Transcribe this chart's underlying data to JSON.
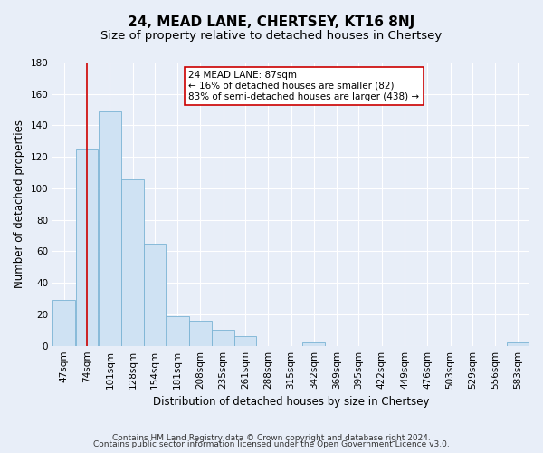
{
  "title": "24, MEAD LANE, CHERTSEY, KT16 8NJ",
  "subtitle": "Size of property relative to detached houses in Chertsey",
  "xlabel": "Distribution of detached houses by size in Chertsey",
  "ylabel": "Number of detached properties",
  "bar_edges": [
    47,
    74,
    101,
    128,
    154,
    181,
    208,
    235,
    261,
    288,
    315,
    342,
    369,
    395,
    422,
    449,
    476,
    503,
    529,
    556,
    583
  ],
  "bar_heights": [
    29,
    125,
    149,
    106,
    65,
    19,
    16,
    10,
    6,
    0,
    0,
    2,
    0,
    0,
    0,
    0,
    0,
    0,
    0,
    0,
    2
  ],
  "bar_color": "#cfe2f3",
  "bar_edgecolor": "#7ab3d4",
  "vline_x": 87,
  "vline_color": "#cc0000",
  "annotation_text": "24 MEAD LANE: 87sqm\n← 16% of detached houses are smaller (82)\n83% of semi-detached houses are larger (438) →",
  "annotation_box_edgecolor": "#cc0000",
  "annotation_box_facecolor": "#ffffff",
  "ylim": [
    0,
    180
  ],
  "yticks": [
    0,
    20,
    40,
    60,
    80,
    100,
    120,
    140,
    160,
    180
  ],
  "footer1": "Contains HM Land Registry data © Crown copyright and database right 2024.",
  "footer2": "Contains public sector information licensed under the Open Government Licence v3.0.",
  "background_color": "#e8eef8",
  "plot_bg_color": "#e8eef8",
  "grid_color": "#ffffff",
  "title_fontsize": 11,
  "subtitle_fontsize": 9.5,
  "axis_label_fontsize": 8.5,
  "tick_fontsize": 7.5,
  "footer_fontsize": 6.5,
  "annotation_fontsize": 7.5
}
